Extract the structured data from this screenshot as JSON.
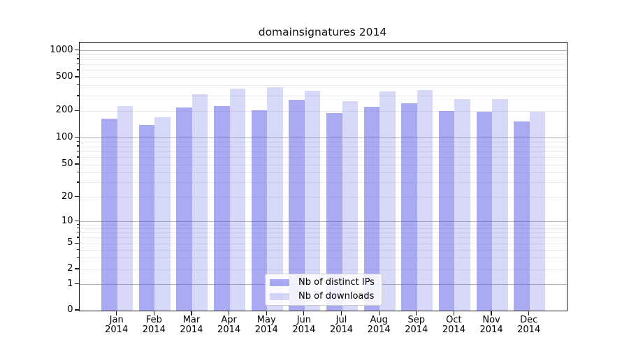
{
  "title": "domainsignatures 2014",
  "chart_data": {
    "type": "bar",
    "title": "domainsignatures 2014",
    "categories": [
      "Jan",
      "Feb",
      "Mar",
      "Apr",
      "May",
      "Jun",
      "Jul",
      "Aug",
      "Sep",
      "Oct",
      "Nov",
      "Dec"
    ],
    "year_label": "2014",
    "series": [
      {
        "name": "Nb of distinct IPs",
        "color": "rgba(100,100,232,0.55)",
        "values": [
          165,
          140,
          222,
          230,
          205,
          275,
          190,
          225,
          250,
          202,
          198,
          154
        ]
      },
      {
        "name": "Nb of downloads",
        "color": "rgba(100,100,232,0.25)",
        "values": [
          230,
          170,
          315,
          370,
          385,
          350,
          260,
          340,
          355,
          278,
          276,
          196
        ]
      }
    ],
    "y_ticks": [
      0,
      1,
      2,
      5,
      10,
      20,
      50,
      100,
      200,
      500,
      1000
    ],
    "y_scale": "symlog",
    "ylim": [
      0,
      1250
    ],
    "xlabel": "",
    "ylabel": "",
    "grid": "horizontal",
    "legend_position": "lower-center",
    "colors": {
      "bar_dark": "rgba(100,100,232,0.55)",
      "bar_light": "rgba(100,100,232,0.25)",
      "grid_major": "#b0b0b0",
      "grid_minor": "#ebebeb",
      "spine": "#1a1a1a"
    }
  },
  "legend": {
    "items": [
      {
        "label": "Nb of distinct IPs"
      },
      {
        "label": "Nb of downloads"
      }
    ]
  }
}
